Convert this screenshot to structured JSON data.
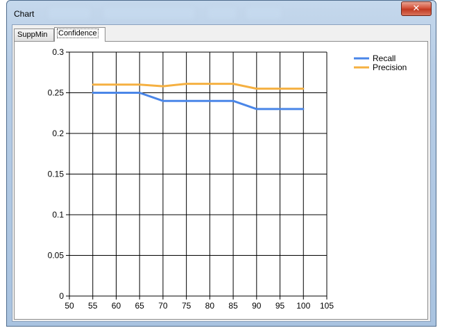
{
  "window": {
    "title": "Chart",
    "close_glyph": "✕"
  },
  "tabs": [
    {
      "label": "SuppMin",
      "active": false
    },
    {
      "label": "Confidence",
      "active": true
    }
  ],
  "chart_data": {
    "type": "line",
    "x": [
      55,
      60,
      65,
      70,
      75,
      80,
      85,
      90,
      95,
      100
    ],
    "series": [
      {
        "name": "Recall",
        "color": "#4a86e8",
        "values": [
          0.25,
          0.25,
          0.25,
          0.24,
          0.24,
          0.24,
          0.24,
          0.23,
          0.23,
          0.23
        ]
      },
      {
        "name": "Precision",
        "color": "#f5b041",
        "values": [
          0.26,
          0.26,
          0.26,
          0.258,
          0.261,
          0.261,
          0.261,
          0.255,
          0.255,
          0.255
        ]
      }
    ],
    "xlim": [
      50,
      105
    ],
    "ylim": [
      0,
      0.3
    ],
    "xticks": [
      "50",
      "55",
      "60",
      "65",
      "70",
      "75",
      "80",
      "85",
      "90",
      "95",
      "100",
      "105"
    ],
    "yticks": [
      "0",
      "0.05",
      "0.1",
      "0.15",
      "0.2",
      "0.25",
      "0.3"
    ],
    "grid": true,
    "legend_position": "top-right"
  }
}
